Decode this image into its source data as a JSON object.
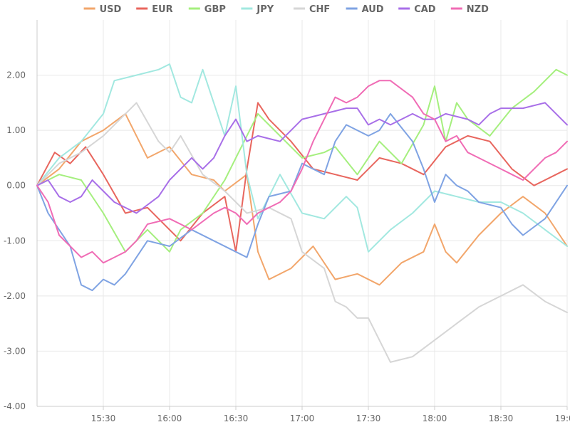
{
  "chart_data": {
    "type": "line",
    "title": "",
    "xlabel": "",
    "ylabel": "",
    "ylim": [
      -4,
      3
    ],
    "xlim": [
      "15:00",
      "19:00"
    ],
    "grid": true,
    "legend_position": "top",
    "y_ticks": [
      {
        "value": 2,
        "label": "2.00"
      },
      {
        "value": 1,
        "label": "1.00"
      },
      {
        "value": 0,
        "label": "0.00"
      },
      {
        "value": -1,
        "label": "-1.00"
      },
      {
        "value": -2,
        "label": "-2.00"
      },
      {
        "value": -3,
        "label": "-3.00"
      },
      {
        "value": -4,
        "label": "-4.00"
      }
    ],
    "x_ticks": [
      {
        "value": "15:30",
        "label": "15:30"
      },
      {
        "value": "16:00",
        "label": "16:00"
      },
      {
        "value": "16:30",
        "label": "16:30"
      },
      {
        "value": "17:00",
        "label": "17:00"
      },
      {
        "value": "17:30",
        "label": "17:30"
      },
      {
        "value": "18:00",
        "label": "18:00"
      },
      {
        "value": "18:30",
        "label": "18:30"
      },
      {
        "value": "19:00",
        "label": "19:00"
      }
    ],
    "series": [
      {
        "name": "USD",
        "color": "#f2a66b",
        "points": [
          [
            "15:00",
            0.0
          ],
          [
            "15:10",
            0.3
          ],
          [
            "15:20",
            0.8
          ],
          [
            "15:30",
            1.0
          ],
          [
            "15:40",
            1.3
          ],
          [
            "15:50",
            0.5
          ],
          [
            "16:00",
            0.7
          ],
          [
            "16:10",
            0.2
          ],
          [
            "16:20",
            0.1
          ],
          [
            "16:25",
            -0.1
          ],
          [
            "16:35",
            0.2
          ],
          [
            "16:40",
            -1.2
          ],
          [
            "16:45",
            -1.7
          ],
          [
            "16:55",
            -1.5
          ],
          [
            "17:05",
            -1.1
          ],
          [
            "17:15",
            -1.7
          ],
          [
            "17:25",
            -1.6
          ],
          [
            "17:35",
            -1.8
          ],
          [
            "17:45",
            -1.4
          ],
          [
            "17:55",
            -1.2
          ],
          [
            "18:00",
            -0.7
          ],
          [
            "18:05",
            -1.2
          ],
          [
            "18:10",
            -1.4
          ],
          [
            "18:20",
            -0.9
          ],
          [
            "18:30",
            -0.5
          ],
          [
            "18:40",
            -0.2
          ],
          [
            "18:50",
            -0.5
          ],
          [
            "19:00",
            -1.1
          ]
        ]
      },
      {
        "name": "EUR",
        "color": "#e8665e",
        "points": [
          [
            "15:00",
            0.0
          ],
          [
            "15:08",
            0.6
          ],
          [
            "15:15",
            0.4
          ],
          [
            "15:22",
            0.7
          ],
          [
            "15:30",
            0.2
          ],
          [
            "15:40",
            -0.5
          ],
          [
            "15:50",
            -0.4
          ],
          [
            "16:00",
            -0.8
          ],
          [
            "16:05",
            -1.0
          ],
          [
            "16:15",
            -0.5
          ],
          [
            "16:25",
            -0.2
          ],
          [
            "16:30",
            -1.2
          ],
          [
            "16:35",
            0.3
          ],
          [
            "16:40",
            1.5
          ],
          [
            "16:45",
            1.2
          ],
          [
            "16:55",
            0.8
          ],
          [
            "17:05",
            0.3
          ],
          [
            "17:15",
            0.2
          ],
          [
            "17:25",
            0.1
          ],
          [
            "17:35",
            0.5
          ],
          [
            "17:45",
            0.4
          ],
          [
            "17:55",
            0.2
          ],
          [
            "18:05",
            0.7
          ],
          [
            "18:15",
            0.9
          ],
          [
            "18:25",
            0.8
          ],
          [
            "18:35",
            0.3
          ],
          [
            "18:45",
            0.0
          ],
          [
            "18:55",
            0.2
          ],
          [
            "19:00",
            0.3
          ]
        ]
      },
      {
        "name": "GBP",
        "color": "#a5ef7e",
        "points": [
          [
            "15:00",
            0.0
          ],
          [
            "15:10",
            0.2
          ],
          [
            "15:20",
            0.1
          ],
          [
            "15:30",
            -0.5
          ],
          [
            "15:40",
            -1.2
          ],
          [
            "15:50",
            -0.8
          ],
          [
            "16:00",
            -1.2
          ],
          [
            "16:05",
            -0.8
          ],
          [
            "16:15",
            -0.5
          ],
          [
            "16:25",
            0.1
          ],
          [
            "16:30",
            0.5
          ],
          [
            "16:40",
            1.3
          ],
          [
            "16:50",
            0.9
          ],
          [
            "17:00",
            0.5
          ],
          [
            "17:10",
            0.6
          ],
          [
            "17:15",
            0.7
          ],
          [
            "17:25",
            0.2
          ],
          [
            "17:35",
            0.8
          ],
          [
            "17:45",
            0.4
          ],
          [
            "17:55",
            1.1
          ],
          [
            "18:00",
            1.8
          ],
          [
            "18:05",
            0.8
          ],
          [
            "18:10",
            1.5
          ],
          [
            "18:15",
            1.2
          ],
          [
            "18:25",
            0.9
          ],
          [
            "18:35",
            1.4
          ],
          [
            "18:45",
            1.7
          ],
          [
            "18:55",
            2.1
          ],
          [
            "19:00",
            2.0
          ]
        ]
      },
      {
        "name": "JPY",
        "color": "#a2e8e0",
        "points": [
          [
            "15:00",
            0.0
          ],
          [
            "15:10",
            0.5
          ],
          [
            "15:20",
            0.8
          ],
          [
            "15:30",
            1.3
          ],
          [
            "15:35",
            1.9
          ],
          [
            "15:45",
            2.0
          ],
          [
            "15:55",
            2.1
          ],
          [
            "16:00",
            2.2
          ],
          [
            "16:05",
            1.6
          ],
          [
            "16:10",
            1.5
          ],
          [
            "16:15",
            2.1
          ],
          [
            "16:20",
            1.5
          ],
          [
            "16:25",
            0.9
          ],
          [
            "16:30",
            1.8
          ],
          [
            "16:35",
            0.2
          ],
          [
            "16:40",
            -0.6
          ],
          [
            "16:50",
            0.2
          ],
          [
            "17:00",
            -0.5
          ],
          [
            "17:10",
            -0.6
          ],
          [
            "17:20",
            -0.2
          ],
          [
            "17:25",
            -0.4
          ],
          [
            "17:30",
            -1.2
          ],
          [
            "17:40",
            -0.8
          ],
          [
            "17:50",
            -0.5
          ],
          [
            "18:00",
            -0.1
          ],
          [
            "18:10",
            -0.2
          ],
          [
            "18:20",
            -0.3
          ],
          [
            "18:30",
            -0.3
          ],
          [
            "18:40",
            -0.5
          ],
          [
            "18:50",
            -0.8
          ],
          [
            "19:00",
            -1.1
          ]
        ]
      },
      {
        "name": "CHF",
        "color": "#d6d6d6",
        "points": [
          [
            "15:00",
            0.0
          ],
          [
            "15:10",
            0.4
          ],
          [
            "15:20",
            0.6
          ],
          [
            "15:30",
            0.9
          ],
          [
            "15:40",
            1.3
          ],
          [
            "15:45",
            1.5
          ],
          [
            "15:55",
            0.8
          ],
          [
            "16:00",
            0.6
          ],
          [
            "16:05",
            0.9
          ],
          [
            "16:15",
            0.2
          ],
          [
            "16:25",
            -0.1
          ],
          [
            "16:35",
            -0.5
          ],
          [
            "16:45",
            -0.4
          ],
          [
            "16:55",
            -0.6
          ],
          [
            "17:00",
            -1.2
          ],
          [
            "17:10",
            -1.5
          ],
          [
            "17:15",
            -2.1
          ],
          [
            "17:20",
            -2.2
          ],
          [
            "17:25",
            -2.4
          ],
          [
            "17:30",
            -2.4
          ],
          [
            "17:35",
            -2.8
          ],
          [
            "17:40",
            -3.2
          ],
          [
            "17:50",
            -3.1
          ],
          [
            "18:00",
            -2.8
          ],
          [
            "18:10",
            -2.5
          ],
          [
            "18:20",
            -2.2
          ],
          [
            "18:30",
            -2.0
          ],
          [
            "18:40",
            -1.8
          ],
          [
            "18:50",
            -2.1
          ],
          [
            "19:00",
            -2.3
          ]
        ]
      },
      {
        "name": "AUD",
        "color": "#7fa3e3",
        "points": [
          [
            "15:00",
            0.0
          ],
          [
            "15:05",
            -0.5
          ],
          [
            "15:10",
            -0.8
          ],
          [
            "15:15",
            -1.1
          ],
          [
            "15:20",
            -1.8
          ],
          [
            "15:25",
            -1.9
          ],
          [
            "15:30",
            -1.7
          ],
          [
            "15:35",
            -1.8
          ],
          [
            "15:40",
            -1.6
          ],
          [
            "15:45",
            -1.3
          ],
          [
            "15:50",
            -1.0
          ],
          [
            "16:00",
            -1.1
          ],
          [
            "16:10",
            -0.8
          ],
          [
            "16:20",
            -1.0
          ],
          [
            "16:30",
            -1.2
          ],
          [
            "16:35",
            -1.3
          ],
          [
            "16:40",
            -0.7
          ],
          [
            "16:45",
            -0.2
          ],
          [
            "16:55",
            -0.1
          ],
          [
            "17:00",
            0.4
          ],
          [
            "17:10",
            0.2
          ],
          [
            "17:15",
            0.8
          ],
          [
            "17:20",
            1.1
          ],
          [
            "17:30",
            0.9
          ],
          [
            "17:35",
            1.0
          ],
          [
            "17:40",
            1.3
          ],
          [
            "17:50",
            0.8
          ],
          [
            "17:55",
            0.3
          ],
          [
            "18:00",
            -0.3
          ],
          [
            "18:05",
            0.2
          ],
          [
            "18:10",
            0.0
          ],
          [
            "18:15",
            -0.1
          ],
          [
            "18:20",
            -0.3
          ],
          [
            "18:30",
            -0.4
          ],
          [
            "18:35",
            -0.7
          ],
          [
            "18:40",
            -0.9
          ],
          [
            "18:50",
            -0.6
          ],
          [
            "19:00",
            0.0
          ]
        ]
      },
      {
        "name": "CAD",
        "color": "#a86fe8",
        "points": [
          [
            "15:00",
            0.0
          ],
          [
            "15:05",
            0.1
          ],
          [
            "15:10",
            -0.2
          ],
          [
            "15:15",
            -0.3
          ],
          [
            "15:20",
            -0.2
          ],
          [
            "15:25",
            0.1
          ],
          [
            "15:30",
            -0.1
          ],
          [
            "15:35",
            -0.3
          ],
          [
            "15:45",
            -0.5
          ],
          [
            "15:55",
            -0.2
          ],
          [
            "16:00",
            0.1
          ],
          [
            "16:10",
            0.5
          ],
          [
            "16:15",
            0.3
          ],
          [
            "16:20",
            0.5
          ],
          [
            "16:25",
            0.9
          ],
          [
            "16:30",
            1.2
          ],
          [
            "16:35",
            0.8
          ],
          [
            "16:40",
            0.9
          ],
          [
            "16:50",
            0.8
          ],
          [
            "17:00",
            1.2
          ],
          [
            "17:10",
            1.3
          ],
          [
            "17:20",
            1.4
          ],
          [
            "17:25",
            1.4
          ],
          [
            "17:30",
            1.1
          ],
          [
            "17:35",
            1.2
          ],
          [
            "17:40",
            1.1
          ],
          [
            "17:50",
            1.3
          ],
          [
            "17:55",
            1.2
          ],
          [
            "18:00",
            1.2
          ],
          [
            "18:05",
            1.3
          ],
          [
            "18:15",
            1.2
          ],
          [
            "18:20",
            1.1
          ],
          [
            "18:25",
            1.3
          ],
          [
            "18:30",
            1.4
          ],
          [
            "18:40",
            1.4
          ],
          [
            "18:50",
            1.5
          ],
          [
            "19:00",
            1.1
          ]
        ]
      },
      {
        "name": "NZD",
        "color": "#f06cb5",
        "points": [
          [
            "15:00",
            0.0
          ],
          [
            "15:05",
            -0.3
          ],
          [
            "15:10",
            -0.9
          ],
          [
            "15:15",
            -1.1
          ],
          [
            "15:20",
            -1.3
          ],
          [
            "15:25",
            -1.2
          ],
          [
            "15:30",
            -1.4
          ],
          [
            "15:35",
            -1.3
          ],
          [
            "15:40",
            -1.2
          ],
          [
            "15:45",
            -1.0
          ],
          [
            "15:50",
            -0.7
          ],
          [
            "16:00",
            -0.6
          ],
          [
            "16:10",
            -0.8
          ],
          [
            "16:20",
            -0.5
          ],
          [
            "16:25",
            -0.4
          ],
          [
            "16:30",
            -0.5
          ],
          [
            "16:35",
            -0.7
          ],
          [
            "16:40",
            -0.5
          ],
          [
            "16:50",
            -0.3
          ],
          [
            "16:55",
            -0.1
          ],
          [
            "17:00",
            0.3
          ],
          [
            "17:05",
            0.8
          ],
          [
            "17:10",
            1.2
          ],
          [
            "17:15",
            1.6
          ],
          [
            "17:20",
            1.5
          ],
          [
            "17:25",
            1.6
          ],
          [
            "17:30",
            1.8
          ],
          [
            "17:35",
            1.9
          ],
          [
            "17:40",
            1.9
          ],
          [
            "17:50",
            1.6
          ],
          [
            "17:55",
            1.3
          ],
          [
            "18:00",
            1.2
          ],
          [
            "18:05",
            0.8
          ],
          [
            "18:10",
            0.9
          ],
          [
            "18:15",
            0.6
          ],
          [
            "18:20",
            0.5
          ],
          [
            "18:30",
            0.3
          ],
          [
            "18:35",
            0.2
          ],
          [
            "18:40",
            0.1
          ],
          [
            "18:45",
            0.3
          ],
          [
            "18:50",
            0.5
          ],
          [
            "18:55",
            0.6
          ],
          [
            "19:00",
            0.8
          ]
        ]
      }
    ]
  }
}
